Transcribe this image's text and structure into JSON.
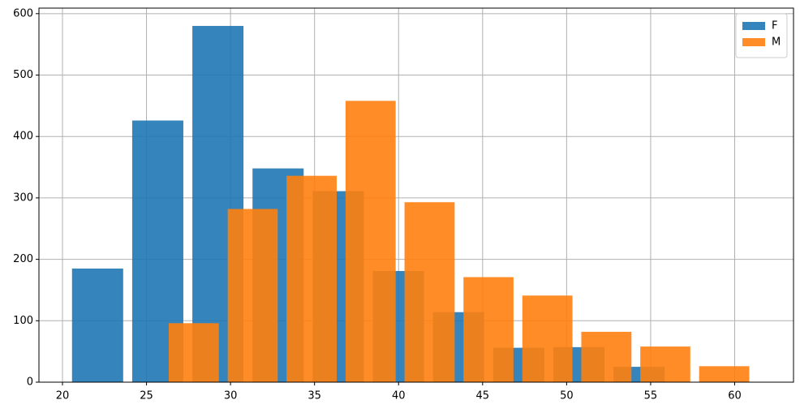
{
  "chart_data": {
    "type": "histogram",
    "series": [
      {
        "name": "F",
        "color": "#1f77b4",
        "bins": [
          20.3,
          23.88,
          27.46,
          31.04,
          34.62,
          38.2,
          41.78,
          45.36,
          48.94,
          52.52,
          56.1
        ],
        "values": [
          185,
          426,
          580,
          348,
          311,
          181,
          114,
          56,
          57,
          25
        ]
      },
      {
        "name": "M",
        "color": "#ff7f0e",
        "bins": [
          26.06,
          29.57,
          33.07,
          36.58,
          40.09,
          43.6,
          47.1,
          50.61,
          54.12,
          57.62,
          61.13
        ],
        "values": [
          96,
          282,
          336,
          458,
          293,
          171,
          141,
          82,
          58,
          26
        ]
      }
    ],
    "rwidth": 0.85,
    "opacity": 0.9,
    "xlim": [
      18.6,
      63.5
    ],
    "xticks": [
      20,
      25,
      30,
      35,
      40,
      45,
      50,
      55,
      60
    ],
    "ylim": [
      0,
      609
    ],
    "yticks": [
      0,
      100,
      200,
      300,
      400,
      500,
      600
    ],
    "grid": true,
    "legend": "upper right"
  }
}
